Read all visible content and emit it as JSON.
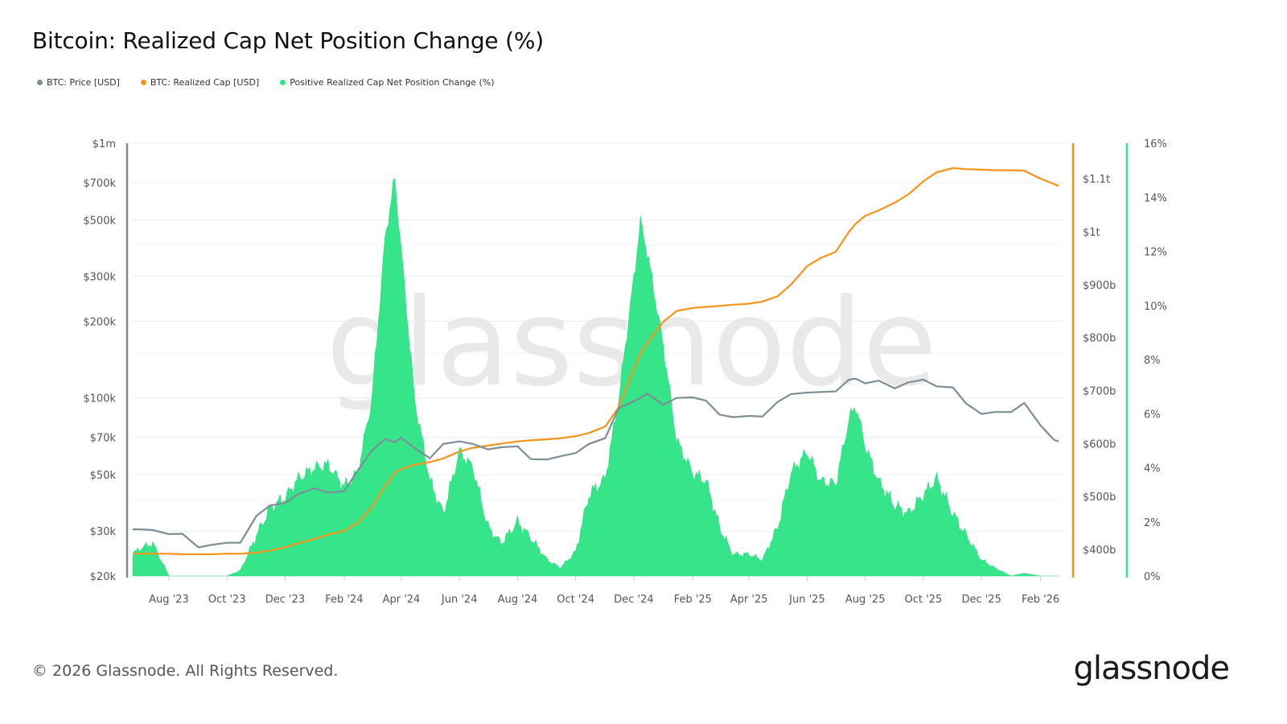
{
  "title": "Bitcoin: Realized Cap Net Position Change (%)",
  "legend": [
    {
      "label": "BTC: Price [USD]",
      "color": "#7d8e96"
    },
    {
      "label": "BTC: Realized Cap [USD]",
      "color": "#f7931a"
    },
    {
      "label": "Positive Realized Cap Net Position Change (%)",
      "color": "#36e58a"
    }
  ],
  "watermark": "glassnode",
  "footer": "© 2026 Glassnode. All Rights Reserved.",
  "logo": "glassnode",
  "chart_data": {
    "type": "line",
    "title": "Bitcoin: Realized Cap Net Position Change (%)",
    "x_axis": {
      "type": "date",
      "range": [
        "2023-06-24",
        "2026-02-25"
      ],
      "tick_labels": [
        "Aug '23",
        "Oct '23",
        "Dec '23",
        "Feb '24",
        "Apr '24",
        "Jun '24",
        "Aug '24",
        "Oct '24",
        "Dec '24",
        "Feb '25",
        "Apr '25",
        "Jun '25",
        "Aug '25",
        "Oct '25",
        "Dec '25",
        "Feb '26"
      ],
      "tick_dates": [
        "2023-08-01",
        "2023-10-01",
        "2023-12-01",
        "2024-02-01",
        "2024-04-01",
        "2024-06-01",
        "2024-08-01",
        "2024-10-01",
        "2024-12-01",
        "2025-02-01",
        "2025-04-01",
        "2025-06-01",
        "2025-08-01",
        "2025-10-01",
        "2025-12-01",
        "2026-02-01"
      ]
    },
    "y_left": {
      "scale": "log",
      "range": [
        20000,
        1000000
      ],
      "ticks": [
        20000,
        30000,
        50000,
        70000,
        100000,
        200000,
        300000,
        500000,
        700000,
        1000000
      ],
      "tick_labels": [
        "$20k",
        "$30k",
        "$50k",
        "$70k",
        "$100k",
        "$200k",
        "$300k",
        "$500k",
        "$700k",
        "$1m"
      ],
      "color": "#7d8e96"
    },
    "y_right_1": {
      "scale": "linear",
      "unit": "USD billions",
      "range": [
        350,
        1167
      ],
      "ticks": [
        400,
        500,
        600,
        700,
        800,
        900,
        1000,
        1100
      ],
      "tick_labels": [
        "$400b",
        "$500b",
        "$600b",
        "$700b",
        "$800b",
        "$900b",
        "$1t",
        "$1.1t"
      ],
      "color": "#f7931a"
    },
    "y_right_2": {
      "scale": "linear",
      "range": [
        0,
        16
      ],
      "ticks": [
        0,
        2,
        4,
        6,
        8,
        10,
        12,
        14,
        16
      ],
      "tick_labels": [
        "0%",
        "2%",
        "4%",
        "6%",
        "8%",
        "10%",
        "12%",
        "14%",
        "16%"
      ],
      "color": "#36e58a"
    },
    "grid": true,
    "legend_position": "top-left",
    "dates": [
      "2023-06-24",
      "2023-07-01",
      "2023-07-15",
      "2023-08-01",
      "2023-08-15",
      "2023-09-01",
      "2023-09-15",
      "2023-10-01",
      "2023-10-15",
      "2023-11-01",
      "2023-11-15",
      "2023-12-01",
      "2023-12-15",
      "2024-01-01",
      "2024-01-15",
      "2024-02-01",
      "2024-02-15",
      "2024-03-01",
      "2024-03-15",
      "2024-03-25",
      "2024-04-01",
      "2024-04-15",
      "2024-05-01",
      "2024-05-15",
      "2024-06-01",
      "2024-06-15",
      "2024-07-01",
      "2024-07-15",
      "2024-08-01",
      "2024-08-15",
      "2024-09-01",
      "2024-09-15",
      "2024-10-01",
      "2024-10-15",
      "2024-11-01",
      "2024-11-15",
      "2024-12-01",
      "2024-12-08",
      "2024-12-15",
      "2025-01-01",
      "2025-01-15",
      "2025-02-01",
      "2025-02-15",
      "2025-03-01",
      "2025-03-15",
      "2025-04-01",
      "2025-04-15",
      "2025-05-01",
      "2025-05-15",
      "2025-06-01",
      "2025-06-15",
      "2025-07-01",
      "2025-07-15",
      "2025-07-22",
      "2025-08-01",
      "2025-08-15",
      "2025-09-01",
      "2025-09-15",
      "2025-10-01",
      "2025-10-15",
      "2025-11-01",
      "2025-11-15",
      "2025-12-01",
      "2025-12-15",
      "2026-01-01",
      "2026-01-15",
      "2026-02-01",
      "2026-02-15",
      "2026-02-20"
    ],
    "series": [
      {
        "name": "BTC: Price [USD]",
        "axis": "y_left",
        "values": [
          30500,
          30500,
          30300,
          29200,
          29300,
          25900,
          26500,
          27000,
          27000,
          34500,
          37800,
          38700,
          42000,
          44200,
          42500,
          43000,
          51800,
          62000,
          69000,
          67000,
          69700,
          63500,
          58000,
          66000,
          67500,
          66000,
          62800,
          64000,
          64600,
          57500,
          57300,
          59000,
          60800,
          66000,
          69500,
          91000,
          97000,
          100000,
          104000,
          94000,
          100000,
          100500,
          97500,
          86000,
          84000,
          85000,
          84500,
          96500,
          103500,
          105000,
          105500,
          106000,
          118000,
          119000,
          114000,
          117000,
          109000,
          115000,
          118000,
          111000,
          110000,
          95000,
          86500,
          88000,
          88000,
          95500,
          78000,
          68500,
          67500
        ]
      },
      {
        "name": "BTC: Realized Cap [USD]",
        "axis": "y_right_1",
        "values": [
          392,
          392,
          392,
          392,
          391,
          391,
          391,
          392,
          392,
          394,
          398,
          404,
          412,
          420,
          428,
          435,
          450,
          480,
          520,
          545,
          552,
          560,
          565,
          572,
          585,
          592,
          596,
          600,
          604,
          606,
          608,
          610,
          614,
          620,
          632,
          668,
          740,
          770,
          790,
          830,
          850,
          856,
          858,
          860,
          862,
          864,
          868,
          878,
          900,
          935,
          950,
          962,
          1000,
          1015,
          1030,
          1040,
          1055,
          1070,
          1095,
          1112,
          1120,
          1118,
          1117,
          1116,
          1116,
          1115,
          1100,
          1090,
          1086
        ]
      },
      {
        "name": "Positive Realized Cap Net Position Change (%)",
        "axis": "y_right_2",
        "type": "area",
        "values": [
          0.8,
          1.0,
          1.2,
          0,
          0,
          0,
          0,
          0,
          0.2,
          1.5,
          2.5,
          2.9,
          3.6,
          4.0,
          4.1,
          3.3,
          3.8,
          6.5,
          12.5,
          14.7,
          12.0,
          6.5,
          3.5,
          2.3,
          4.6,
          4.0,
          1.8,
          1.2,
          2.0,
          1.4,
          0.6,
          0.3,
          0.9,
          3.0,
          3.6,
          6.5,
          11.0,
          13.1,
          12.0,
          8.5,
          5.0,
          3.8,
          3.5,
          1.8,
          0.8,
          0.8,
          0.6,
          1.8,
          3.8,
          4.6,
          3.5,
          3.4,
          5.8,
          6.3,
          4.8,
          3.5,
          2.6,
          2.3,
          3.0,
          3.6,
          2.3,
          1.5,
          0.6,
          0.3,
          0,
          0.1,
          0,
          0,
          0
        ]
      }
    ]
  }
}
